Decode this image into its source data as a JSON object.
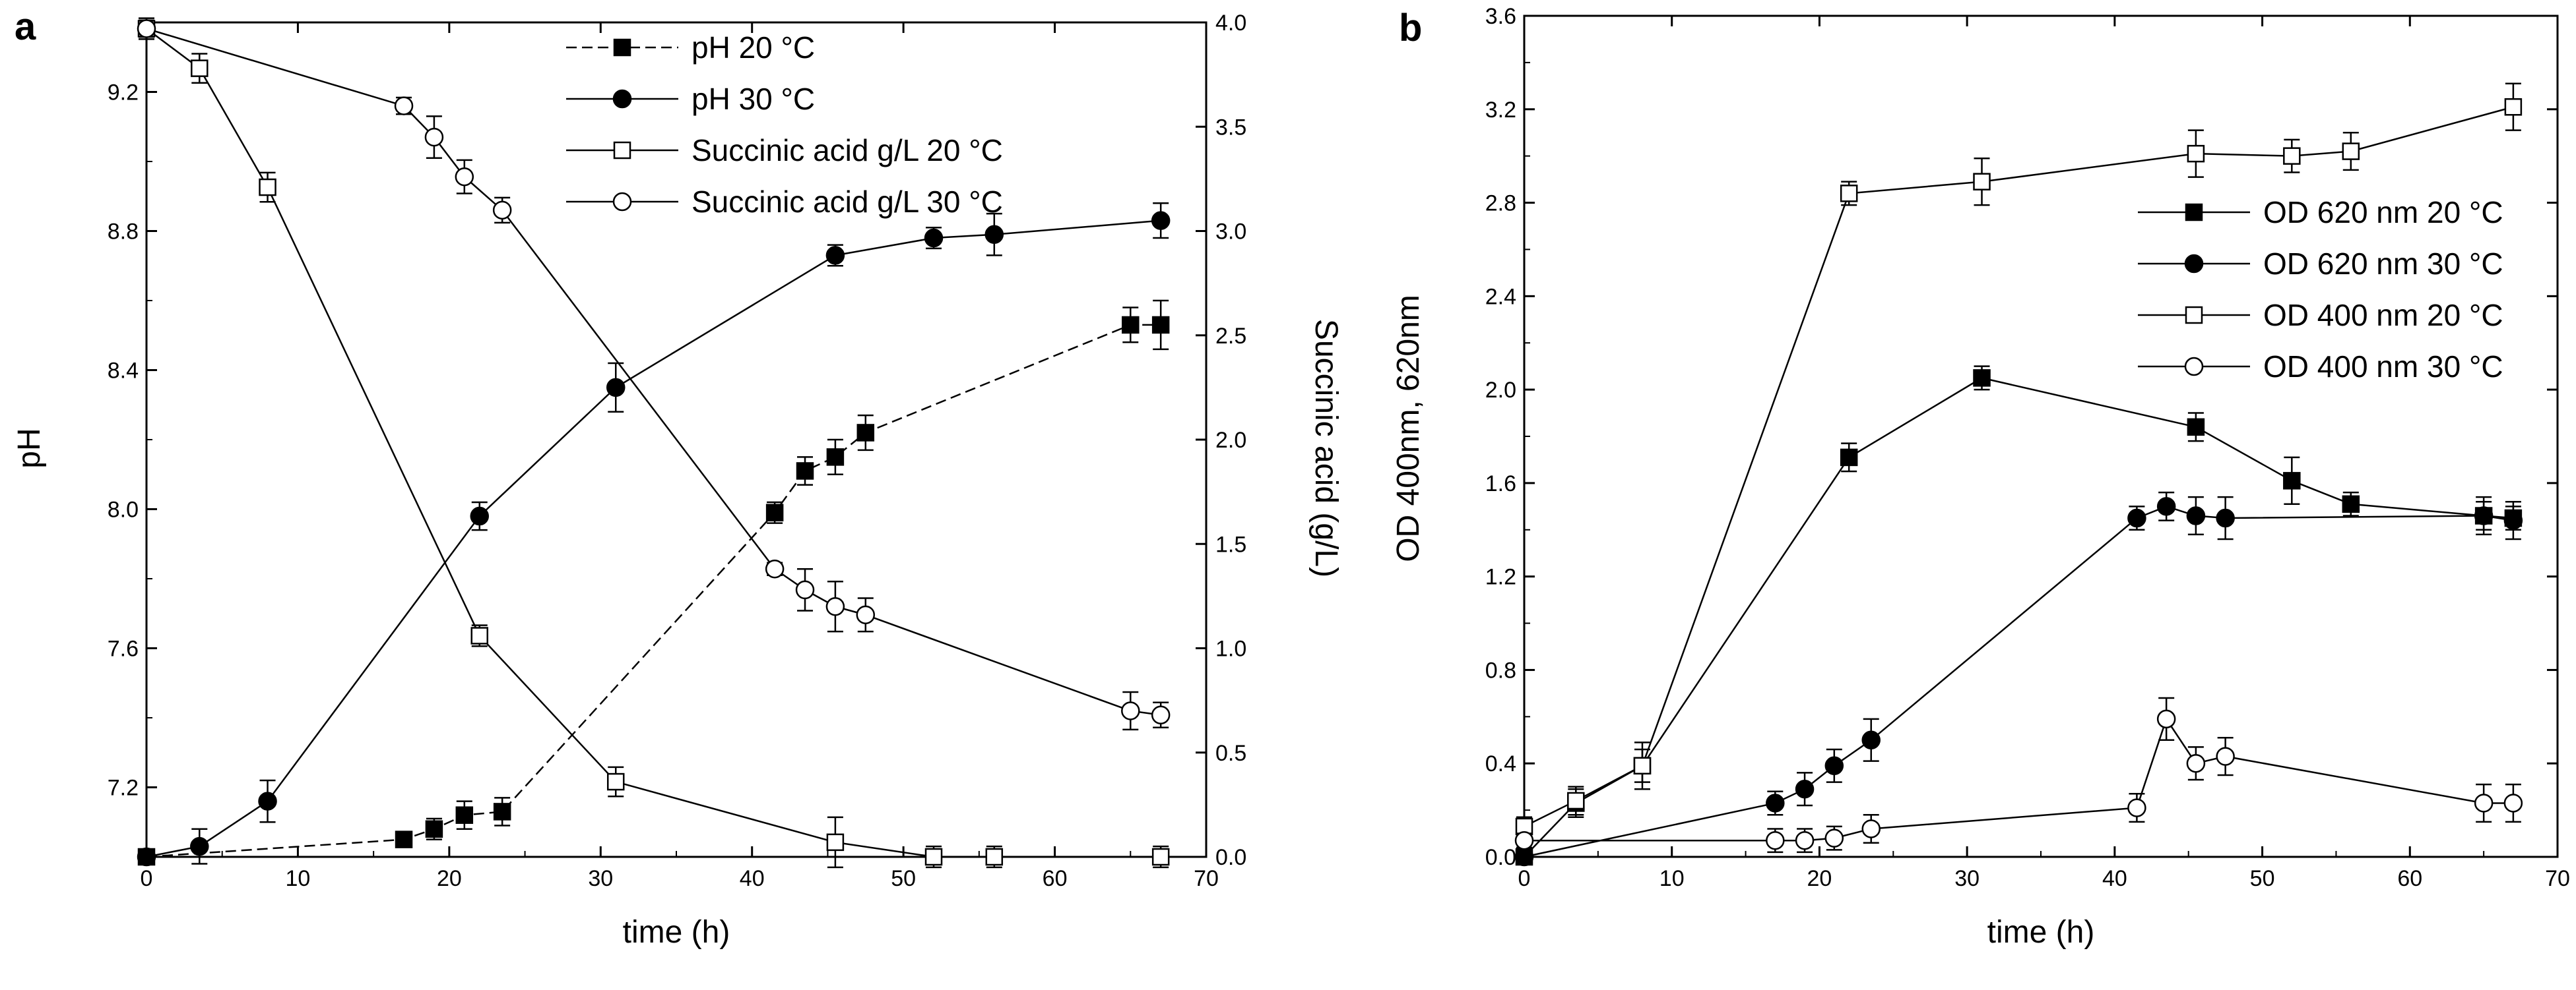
{
  "chart_data": [
    {
      "panel": "a",
      "type": "line",
      "xlabel": "time (h)",
      "ylabel": "pH",
      "y2label": "Succinic acid (g/L)",
      "xlim": [
        0,
        70
      ],
      "ylim": [
        7.0,
        9.4
      ],
      "y2lim": [
        0.0,
        4.0
      ],
      "xticks": [
        0,
        10,
        20,
        30,
        40,
        50,
        60,
        70
      ],
      "yticks": [
        7.2,
        7.6,
        8.0,
        8.4,
        8.8,
        9.2
      ],
      "y2ticks": [
        0.0,
        0.5,
        1.0,
        1.5,
        2.0,
        2.5,
        3.0,
        3.5,
        4.0
      ],
      "legend_position": "top-center",
      "series": [
        {
          "name": "pH 20 °C",
          "axis": "left",
          "marker": "filled-square",
          "line": "dashed",
          "x": [
            0,
            17,
            19,
            21,
            23.5,
            41.5,
            43.5,
            45.5,
            47.5,
            65,
            67
          ],
          "y": [
            7.0,
            7.05,
            7.08,
            7.12,
            7.13,
            7.99,
            8.11,
            8.15,
            8.22,
            8.53,
            8.53
          ],
          "err": [
            0.01,
            0.02,
            0.03,
            0.04,
            0.04,
            0.03,
            0.04,
            0.05,
            0.05,
            0.05,
            0.07
          ]
        },
        {
          "name": "pH 30 °C",
          "axis": "left",
          "marker": "filled-circle",
          "line": "solid",
          "x": [
            0,
            3.5,
            8,
            22,
            31,
            45.5,
            52,
            56,
            67
          ],
          "y": [
            7.0,
            7.03,
            7.16,
            7.98,
            8.35,
            8.73,
            8.78,
            8.79,
            8.83
          ],
          "err": [
            0.01,
            0.05,
            0.06,
            0.04,
            0.07,
            0.03,
            0.03,
            0.06,
            0.05
          ]
        },
        {
          "name": "Succinic acid g/L 20 °C",
          "axis": "right",
          "marker": "open-square",
          "line": "solid",
          "x": [
            0,
            3.5,
            8,
            22,
            31,
            45.5,
            52,
            56,
            67
          ],
          "y": [
            3.97,
            3.78,
            3.21,
            1.06,
            0.36,
            0.07,
            0.0,
            0.0,
            0.0
          ],
          "err": [
            0.05,
            0.07,
            0.07,
            0.05,
            0.07,
            0.12,
            0.05,
            0.05,
            0.05
          ]
        },
        {
          "name": "Succinic acid g/L 30 °C",
          "axis": "right",
          "marker": "open-circle",
          "line": "solid",
          "x": [
            0,
            17,
            19,
            21,
            23.5,
            41.5,
            43.5,
            45.5,
            47.5,
            65,
            67
          ],
          "y": [
            3.97,
            3.6,
            3.45,
            3.26,
            3.1,
            1.38,
            1.28,
            1.2,
            1.16,
            0.7,
            0.68
          ],
          "err": [
            0.04,
            0.04,
            0.1,
            0.08,
            0.06,
            0.03,
            0.1,
            0.12,
            0.08,
            0.09,
            0.06
          ]
        }
      ]
    },
    {
      "panel": "b",
      "type": "line",
      "xlabel": "time (h)",
      "ylabel": "OD 400nm, 620nm",
      "xlim": [
        0,
        70
      ],
      "ylim": [
        0.0,
        3.6
      ],
      "xticks": [
        0,
        10,
        20,
        30,
        40,
        50,
        60,
        70
      ],
      "yticks": [
        0.0,
        0.4,
        0.8,
        1.2,
        1.6,
        2.0,
        2.4,
        2.8,
        3.2,
        3.6
      ],
      "legend_position": "right",
      "series": [
        {
          "name": "OD 620 nm 20 °C",
          "marker": "filled-square",
          "line": "solid",
          "x": [
            0,
            3.5,
            8,
            22,
            31,
            45.5,
            52,
            56,
            65,
            67
          ],
          "y": [
            0.0,
            0.23,
            0.39,
            1.71,
            2.05,
            1.84,
            1.61,
            1.51,
            1.46,
            1.45
          ],
          "err": [
            0.03,
            0.06,
            0.07,
            0.06,
            0.05,
            0.06,
            0.1,
            0.05,
            0.06,
            0.05
          ]
        },
        {
          "name": "OD 620 nm 30 °C",
          "marker": "filled-circle",
          "line": "solid",
          "x": [
            0,
            17,
            19,
            21,
            23.5,
            41.5,
            43.5,
            45.5,
            47.5,
            65,
            67
          ],
          "y": [
            0.0,
            0.23,
            0.29,
            0.39,
            0.5,
            1.45,
            1.5,
            1.46,
            1.45,
            1.46,
            1.44
          ],
          "err": [
            0.03,
            0.05,
            0.07,
            0.07,
            0.09,
            0.05,
            0.06,
            0.08,
            0.09,
            0.08,
            0.08
          ]
        },
        {
          "name": "OD 400 nm 20 °C",
          "marker": "open-square",
          "line": "solid",
          "x": [
            0,
            3.5,
            8,
            22,
            31,
            45.5,
            52,
            56,
            67
          ],
          "y": [
            0.13,
            0.24,
            0.39,
            2.84,
            2.89,
            3.01,
            3.0,
            3.02,
            3.21
          ],
          "err": [
            0.04,
            0.06,
            0.1,
            0.05,
            0.1,
            0.1,
            0.07,
            0.08,
            0.1
          ]
        },
        {
          "name": "OD 400 nm 30 °C",
          "marker": "open-circle",
          "line": "solid",
          "x": [
            0,
            17,
            19,
            21,
            23.5,
            41.5,
            43.5,
            45.5,
            47.5,
            65,
            67
          ],
          "y": [
            0.07,
            0.07,
            0.07,
            0.08,
            0.12,
            0.21,
            0.59,
            0.4,
            0.43,
            0.23,
            0.23
          ],
          "err": [
            0.03,
            0.05,
            0.05,
            0.05,
            0.06,
            0.06,
            0.09,
            0.07,
            0.08,
            0.08,
            0.08
          ]
        }
      ]
    }
  ]
}
